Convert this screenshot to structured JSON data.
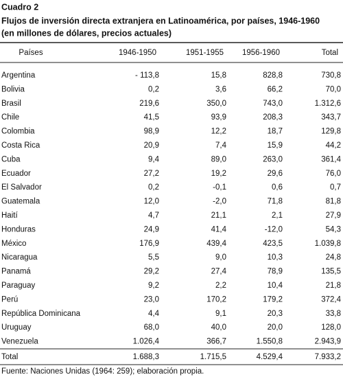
{
  "header": {
    "label": "Cuadro 2",
    "title": "Flujos de inversión directa extranjera en Latinoamérica, por países, 1946-1960",
    "subtitle": "(en millones de dólares, precios actuales)"
  },
  "table": {
    "columns": [
      "Países",
      "1946-1950",
      "1951-1955",
      "1956-1960",
      "Total"
    ],
    "rows": [
      [
        "Argentina",
        "- 113,8",
        "15,8",
        "828,8",
        "730,8"
      ],
      [
        "Bolivia",
        "0,2",
        "3,6",
        "66,2",
        "70,0"
      ],
      [
        "Brasil",
        "219,6",
        "350,0",
        "743,0",
        "1.312,6"
      ],
      [
        "Chile",
        "41,5",
        "93,9",
        "208,3",
        "343,7"
      ],
      [
        "Colombia",
        "98,9",
        "12,2",
        "18,7",
        "129,8"
      ],
      [
        "Costa Rica",
        "20,9",
        "7,4",
        "15,9",
        "44,2"
      ],
      [
        "Cuba",
        "9,4",
        "89,0",
        "263,0",
        "361,4"
      ],
      [
        "Ecuador",
        "27,2",
        "19,2",
        "29,6",
        "76,0"
      ],
      [
        "El Salvador",
        "0,2",
        "-0,1",
        "0,6",
        "0,7"
      ],
      [
        "Guatemala",
        "12,0",
        "-2,0",
        "71,8",
        "81,8"
      ],
      [
        "Haití",
        "4,7",
        "21,1",
        "2,1",
        "27,9"
      ],
      [
        "Honduras",
        "24,9",
        "41,4",
        "-12,0",
        "54,3"
      ],
      [
        "México",
        "176,9",
        "439,4",
        "423,5",
        "1.039,8"
      ],
      [
        "Nicaragua",
        "5,5",
        "9,0",
        "10,3",
        "24,8"
      ],
      [
        "Panamá",
        "29,2",
        "27,4",
        "78,9",
        "135,5"
      ],
      [
        "Paraguay",
        "9,2",
        "2,2",
        "10,4",
        "21,8"
      ],
      [
        "Perú",
        "23,0",
        "170,2",
        "179,2",
        "372,4"
      ],
      [
        "República Dominicana",
        "4,4",
        "9,1",
        "20,3",
        "33,8"
      ],
      [
        "Uruguay",
        "68,0",
        "40,0",
        "20,0",
        "128,0"
      ],
      [
        "Venezuela",
        "1.026,4",
        "366,7",
        "1.550,8",
        "2.943,9"
      ]
    ],
    "total": [
      "Total",
      "1.688,3",
      "1.715,5",
      "4.529,4",
      "7.933,2"
    ]
  },
  "footer": {
    "source": "Fuente: Naciones Unidas (1964: 259); elaboración propia."
  }
}
